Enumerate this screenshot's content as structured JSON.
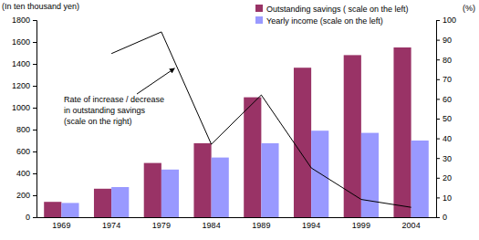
{
  "chart_data": {
    "type": "bar",
    "ylabel": "(In ten thousand yen)",
    "y2label": "(%)",
    "categories": [
      "1969",
      "1974",
      "1979",
      "1984",
      "1989",
      "1994",
      "1999",
      "2004"
    ],
    "series": [
      {
        "name": "Outstanding savings ( scale on the left)",
        "color": "#993366",
        "values": [
          140,
          260,
          495,
          675,
          1095,
          1365,
          1480,
          1550
        ]
      },
      {
        "name": "Yearly income (scale on the left)",
        "color": "#9999ff",
        "values": [
          130,
          275,
          435,
          545,
          675,
          790,
          770,
          700
        ]
      },
      {
        "type": "line",
        "axis": "y2",
        "color": "#000000",
        "values": [
          null,
          83,
          94,
          37,
          62,
          25,
          9,
          5
        ]
      }
    ],
    "annotation": [
      "Rate of increase / decrease",
      "in outstanding savings",
      "(scale on the right)"
    ],
    "ylim": [
      0,
      1800
    ],
    "yticks": [
      0,
      200,
      400,
      600,
      800,
      1000,
      1200,
      1400,
      1600,
      1800
    ],
    "y2lim": [
      0,
      100
    ],
    "y2ticks": [
      0,
      10,
      20,
      30,
      40,
      50,
      60,
      70,
      80,
      90,
      100
    ],
    "legend": "top"
  }
}
